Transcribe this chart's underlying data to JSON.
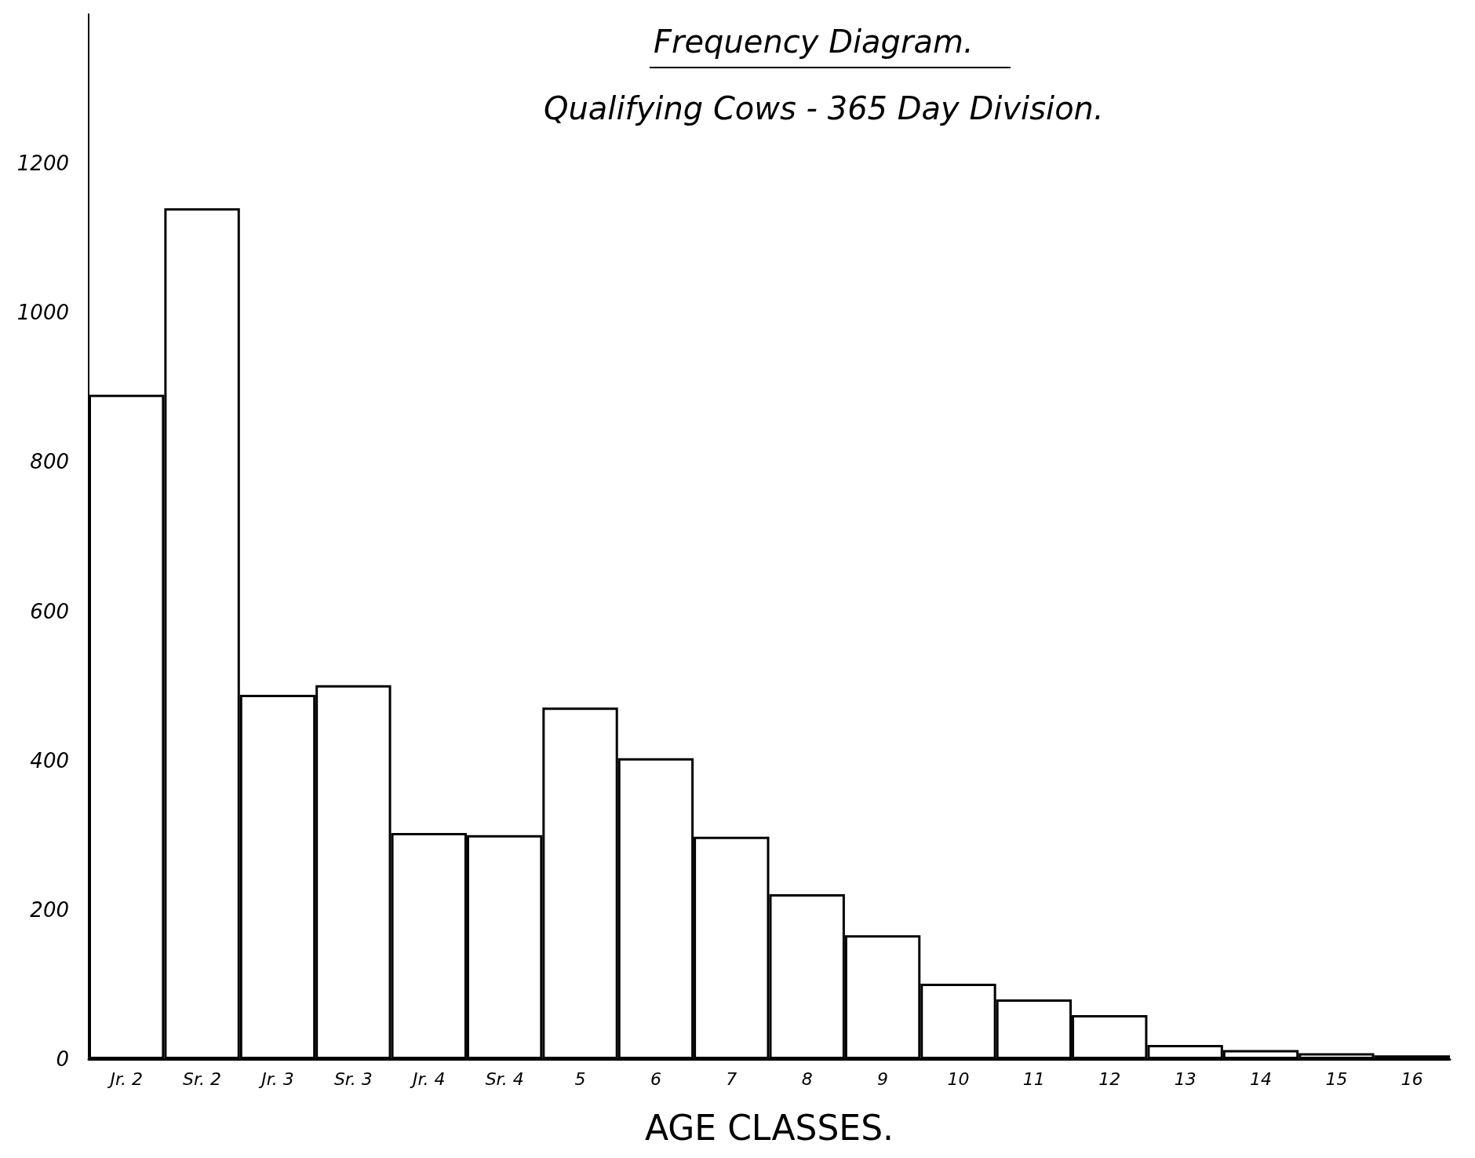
{
  "chart_data": {
    "type": "bar",
    "title": "Frequency Diagram.",
    "subtitle": "Qualifying Cows - 365 Day Division.",
    "xlabel": "AGE CLASSES.",
    "categories": [
      "Jr. 2",
      "Sr. 2",
      "Jr. 3",
      "Sr. 3",
      "Jr. 4",
      "Sr. 4",
      "5",
      "6",
      "7",
      "8",
      "9",
      "10",
      "11",
      "12",
      "13",
      "14",
      "15",
      "16"
    ],
    "values": [
      890,
      1140,
      488,
      501,
      303,
      300,
      471,
      403,
      298,
      221,
      166,
      101,
      80,
      59,
      19,
      12,
      8,
      5
    ],
    "color": "#ffffff",
    "ylim": [
      0,
      1400
    ],
    "yticks": [
      0,
      200,
      400,
      600,
      800,
      1000,
      1200
    ],
    "grid": false
  }
}
